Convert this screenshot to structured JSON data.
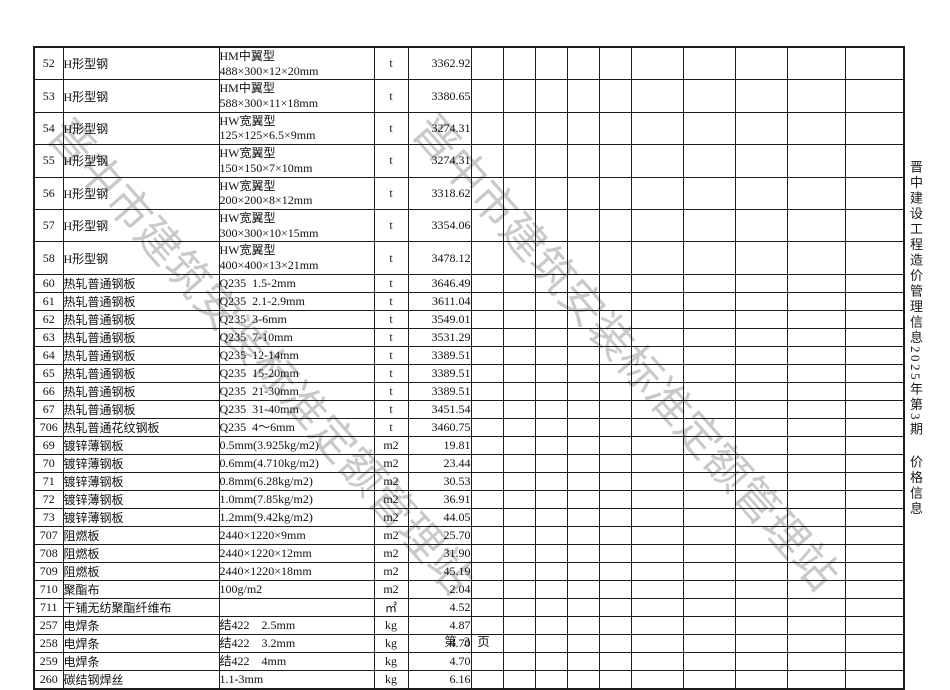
{
  "page": {
    "footer_label": "第 3 页",
    "watermark_text": "晋中市建筑安装标准定额管理站",
    "side_title": "晋中建设工程造价管理信息2025年第3期",
    "side_subtitle": "价格信息"
  },
  "table": {
    "empty_column_count": 10,
    "rows": [
      {
        "no": "52",
        "name": "H形型钢",
        "spec_lines": [
          "HM中翼型",
          "488×300×12×20mm"
        ],
        "unit": "t",
        "price": "3362.92"
      },
      {
        "no": "53",
        "name": "H形型钢",
        "spec_lines": [
          "HM中翼型",
          "588×300×11×18mm"
        ],
        "unit": "t",
        "price": "3380.65"
      },
      {
        "no": "54",
        "name": "H形型钢",
        "spec_lines": [
          "HW宽翼型",
          "125×125×6.5×9mm"
        ],
        "unit": "t",
        "price": "3274.31"
      },
      {
        "no": "55",
        "name": "H形型钢",
        "spec_lines": [
          "HW宽翼型",
          "150×150×7×10mm"
        ],
        "unit": "t",
        "price": "3274.31"
      },
      {
        "no": "56",
        "name": "H形型钢",
        "spec_lines": [
          "HW宽翼型",
          "200×200×8×12mm"
        ],
        "unit": "t",
        "price": "3318.62"
      },
      {
        "no": "57",
        "name": "H形型钢",
        "spec_lines": [
          "HW宽翼型",
          "300×300×10×15mm"
        ],
        "unit": "t",
        "price": "3354.06"
      },
      {
        "no": "58",
        "name": "H形型钢",
        "spec_lines": [
          "HW宽翼型",
          "400×400×13×21mm"
        ],
        "unit": "t",
        "price": "3478.12"
      },
      {
        "no": "60",
        "name": "热轧普通钢板",
        "spec_lines": [
          "Q235  1.5-2mm"
        ],
        "unit": "t",
        "price": "3646.49"
      },
      {
        "no": "61",
        "name": "热轧普通钢板",
        "spec_lines": [
          "Q235  2.1-2.9mm"
        ],
        "unit": "t",
        "price": "3611.04"
      },
      {
        "no": "62",
        "name": "热轧普通钢板",
        "spec_lines": [
          "Q235  3-6mm"
        ],
        "unit": "t",
        "price": "3549.01"
      },
      {
        "no": "63",
        "name": "热轧普通钢板",
        "spec_lines": [
          "Q235  7-10mm"
        ],
        "unit": "t",
        "price": "3531.29"
      },
      {
        "no": "64",
        "name": "热轧普通钢板",
        "spec_lines": [
          "Q235  12-14mm"
        ],
        "unit": "t",
        "price": "3389.51"
      },
      {
        "no": "65",
        "name": "热轧普通钢板",
        "spec_lines": [
          "Q235  15-20mm"
        ],
        "unit": "t",
        "price": "3389.51"
      },
      {
        "no": "66",
        "name": "热轧普通钢板",
        "spec_lines": [
          "Q235  21-30mm"
        ],
        "unit": "t",
        "price": "3389.51"
      },
      {
        "no": "67",
        "name": "热轧普通钢板",
        "spec_lines": [
          "Q235  31-40mm"
        ],
        "unit": "t",
        "price": "3451.54"
      },
      {
        "no": "706",
        "name": "热轧普通花纹钢板",
        "spec_lines": [
          "Q235  4～6mm"
        ],
        "unit": "t",
        "price": "3460.75"
      },
      {
        "no": "69",
        "name": "镀锌薄钢板",
        "spec_lines": [
          "0.5mm(3.925kg/m2)"
        ],
        "unit": "m2",
        "price": "19.81"
      },
      {
        "no": "70",
        "name": "镀锌薄钢板",
        "spec_lines": [
          "0.6mm(4.710kg/m2)"
        ],
        "unit": "m2",
        "price": "23.44"
      },
      {
        "no": "71",
        "name": "镀锌薄钢板",
        "spec_lines": [
          "0.8mm(6.28kg/m2)"
        ],
        "unit": "m2",
        "price": "30.53"
      },
      {
        "no": "72",
        "name": "镀锌薄钢板",
        "spec_lines": [
          "1.0mm(7.85kg/m2)"
        ],
        "unit": "m2",
        "price": "36.91"
      },
      {
        "no": "73",
        "name": "镀锌薄钢板",
        "spec_lines": [
          "1.2mm(9.42kg/m2)"
        ],
        "unit": "m2",
        "price": "44.05"
      },
      {
        "no": "707",
        "name": "阻燃板",
        "spec_lines": [
          "2440×1220×9mm"
        ],
        "unit": "m2",
        "price": "25.70"
      },
      {
        "no": "708",
        "name": "阻燃板",
        "spec_lines": [
          "2440×1220×12mm"
        ],
        "unit": "m2",
        "price": "31.90"
      },
      {
        "no": "709",
        "name": "阻燃板",
        "spec_lines": [
          "2440×1220×18mm"
        ],
        "unit": "m2",
        "price": "45.19"
      },
      {
        "no": "710",
        "name": "聚酯布",
        "spec_lines": [
          "100g/m2"
        ],
        "unit": "m2",
        "price": "2.04"
      },
      {
        "no": "711",
        "name": "干铺无纺聚酯纤维布",
        "spec_lines": [],
        "unit": "㎡",
        "price": "4.52"
      },
      {
        "no": "257",
        "name": "电焊条",
        "spec_lines": [
          "结422    2.5mm"
        ],
        "unit": "kg",
        "price": "4.87"
      },
      {
        "no": "258",
        "name": "电焊条",
        "spec_lines": [
          "结422    3.2mm"
        ],
        "unit": "kg",
        "price": "4.70"
      },
      {
        "no": "259",
        "name": "电焊条",
        "spec_lines": [
          "结422    4mm"
        ],
        "unit": "kg",
        "price": "4.70"
      },
      {
        "no": "260",
        "name": "碳结钢焊丝",
        "spec_lines": [
          "1.1-3mm"
        ],
        "unit": "kg",
        "price": "6.16"
      }
    ]
  }
}
